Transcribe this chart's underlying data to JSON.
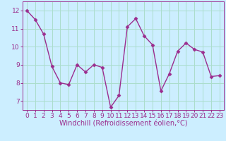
{
  "x": [
    0,
    1,
    2,
    3,
    4,
    5,
    6,
    7,
    8,
    9,
    10,
    11,
    12,
    13,
    14,
    15,
    16,
    17,
    18,
    19,
    20,
    21,
    22,
    23
  ],
  "y": [
    12.0,
    11.5,
    10.7,
    8.9,
    8.0,
    7.9,
    9.0,
    8.6,
    9.0,
    8.85,
    6.65,
    7.3,
    11.1,
    11.55,
    10.6,
    10.1,
    7.55,
    8.5,
    9.75,
    10.2,
    9.85,
    9.7,
    8.35,
    8.4
  ],
  "line_color": "#9b2d8e",
  "marker": "D",
  "markersize": 2.5,
  "linewidth": 1.0,
  "bg_color": "#cceeff",
  "grid_color": "#aaddcc",
  "xlabel": "Windchill (Refroidissement éolien,°C)",
  "xlabel_color": "#9b2d8e",
  "xlabel_fontsize": 7,
  "yticks": [
    7,
    8,
    9,
    10,
    11,
    12
  ],
  "xticks": [
    0,
    1,
    2,
    3,
    4,
    5,
    6,
    7,
    8,
    9,
    10,
    11,
    12,
    13,
    14,
    15,
    16,
    17,
    18,
    19,
    20,
    21,
    22,
    23
  ],
  "ylim": [
    6.5,
    12.5
  ],
  "xlim": [
    -0.5,
    23.5
  ],
  "tick_fontsize": 6.5,
  "tick_color": "#9b2d8e",
  "spine_color": "#9b2d8e"
}
